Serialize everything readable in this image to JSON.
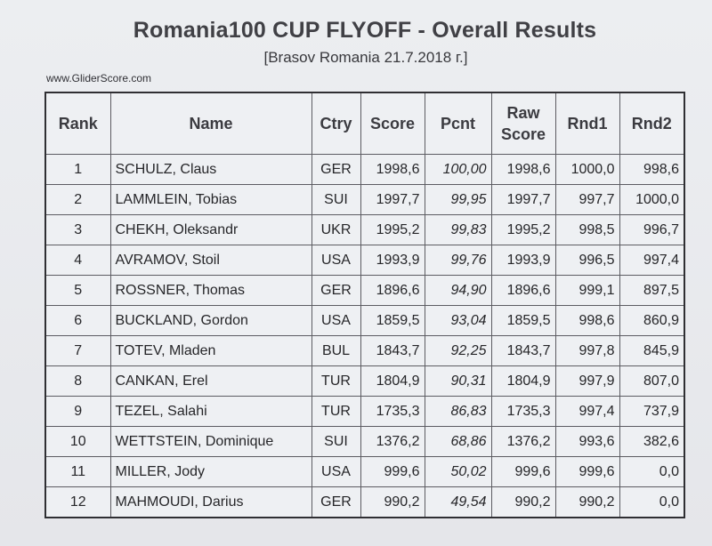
{
  "header": {
    "title": "Romania100 CUP FLYOFF - Overall Results",
    "subtitle": "[Brasov Romania 21.7.2018 г.]",
    "source": "www.GliderScore.com"
  },
  "table": {
    "columns": [
      "Rank",
      "Name",
      "Ctry",
      "Score",
      "Pcnt",
      "Raw Score",
      "Rnd1",
      "Rnd2"
    ],
    "rows": [
      {
        "rank": "1",
        "name": "SCHULZ, Claus",
        "ctry": "GER",
        "score": "1998,6",
        "pcnt": "100,00",
        "raw": "1998,6",
        "rnd1": "1000,0",
        "rnd2": "998,6"
      },
      {
        "rank": "2",
        "name": "LAMMLEIN, Tobias",
        "ctry": "SUI",
        "score": "1997,7",
        "pcnt": "99,95",
        "raw": "1997,7",
        "rnd1": "997,7",
        "rnd2": "1000,0"
      },
      {
        "rank": "3",
        "name": "CHEKH, Oleksandr",
        "ctry": "UKR",
        "score": "1995,2",
        "pcnt": "99,83",
        "raw": "1995,2",
        "rnd1": "998,5",
        "rnd2": "996,7"
      },
      {
        "rank": "4",
        "name": "AVRAMOV, Stoil",
        "ctry": "USA",
        "score": "1993,9",
        "pcnt": "99,76",
        "raw": "1993,9",
        "rnd1": "996,5",
        "rnd2": "997,4"
      },
      {
        "rank": "5",
        "name": "ROSSNER, Thomas",
        "ctry": "GER",
        "score": "1896,6",
        "pcnt": "94,90",
        "raw": "1896,6",
        "rnd1": "999,1",
        "rnd2": "897,5"
      },
      {
        "rank": "6",
        "name": "BUCKLAND, Gordon",
        "ctry": "USA",
        "score": "1859,5",
        "pcnt": "93,04",
        "raw": "1859,5",
        "rnd1": "998,6",
        "rnd2": "860,9"
      },
      {
        "rank": "7",
        "name": "TOTEV, Mladen",
        "ctry": "BUL",
        "score": "1843,7",
        "pcnt": "92,25",
        "raw": "1843,7",
        "rnd1": "997,8",
        "rnd2": "845,9"
      },
      {
        "rank": "8",
        "name": "CANKAN, Erel",
        "ctry": "TUR",
        "score": "1804,9",
        "pcnt": "90,31",
        "raw": "1804,9",
        "rnd1": "997,9",
        "rnd2": "807,0"
      },
      {
        "rank": "9",
        "name": "TEZEL, Salahi",
        "ctry": "TUR",
        "score": "1735,3",
        "pcnt": "86,83",
        "raw": "1735,3",
        "rnd1": "997,4",
        "rnd2": "737,9"
      },
      {
        "rank": "10",
        "name": "WETTSTEIN, Dominique",
        "ctry": "SUI",
        "score": "1376,2",
        "pcnt": "68,86",
        "raw": "1376,2",
        "rnd1": "993,6",
        "rnd2": "382,6"
      },
      {
        "rank": "11",
        "name": "MILLER, Jody",
        "ctry": "USA",
        "score": "999,6",
        "pcnt": "50,02",
        "raw": "999,6",
        "rnd1": "999,6",
        "rnd2": "0,0"
      },
      {
        "rank": "12",
        "name": "MAHMOUDI, Darius",
        "ctry": "GER",
        "score": "990,2",
        "pcnt": "49,54",
        "raw": "990,2",
        "rnd1": "990,2",
        "rnd2": "0,0"
      }
    ]
  }
}
